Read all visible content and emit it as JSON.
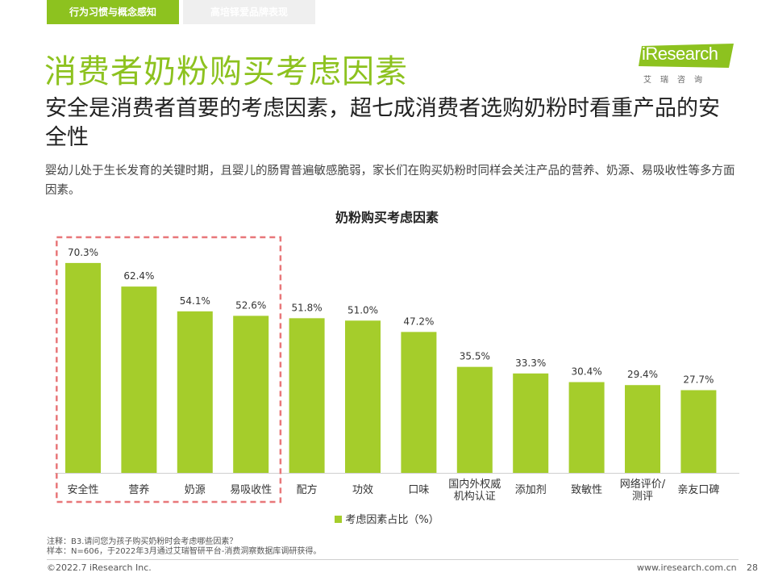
{
  "header": {
    "tabs": [
      {
        "label": "行为习惯与概念感知",
        "active": true
      },
      {
        "label": "高培铎爱品牌表现",
        "active": false
      }
    ]
  },
  "logo": {
    "text": "iResearch",
    "subtitle": "艾瑞咨询"
  },
  "title": "消费者奶粉购买考虑因素",
  "subtitle": "安全是消费者首要的考虑因素，超七成消费者选购奶粉时看重产品的安全性",
  "description": "婴幼儿处于生长发育的关键时期，且婴儿的肠胃普遍敏感脆弱，家长们在购买奶粉时同样会关注产品的营养、奶源、易吸收性等多方面因素。",
  "chart_data": {
    "type": "bar",
    "title": "奶粉购买考虑因素",
    "categories": [
      "安全性",
      "营养",
      "奶源",
      "易吸收性",
      "配方",
      "功效",
      "口味",
      "国内外权威机构认证",
      "添加剂",
      "致敏性",
      "网络评价/测评",
      "亲友口碑"
    ],
    "category_lines": [
      [
        "安全性"
      ],
      [
        "营养"
      ],
      [
        "奶源"
      ],
      [
        "易吸收性"
      ],
      [
        "配方"
      ],
      [
        "功效"
      ],
      [
        "口味"
      ],
      [
        "国内外权威",
        "机构认证"
      ],
      [
        "添加剂"
      ],
      [
        "致敏性"
      ],
      [
        "网络评价/",
        "测评"
      ],
      [
        "亲友口碑"
      ]
    ],
    "series": [
      {
        "name": "考虑因素占比（%）",
        "values": [
          70.3,
          62.4,
          54.1,
          52.6,
          51.8,
          51.0,
          47.2,
          35.5,
          33.3,
          30.4,
          29.4,
          27.7
        ]
      }
    ],
    "value_labels": [
      "70.3%",
      "62.4%",
      "54.1%",
      "52.6%",
      "51.8%",
      "51.0%",
      "47.2%",
      "35.5%",
      "33.3%",
      "30.4%",
      "29.4%",
      "27.7%"
    ],
    "ylim": [
      0,
      100
    ],
    "grid": false,
    "legend_position": "bottom",
    "highlight_first_n": 4,
    "bar_color": "#a5cd2b",
    "highlight_color": "#e87779"
  },
  "legend": {
    "label": "考虑因素占比（%）"
  },
  "footer": {
    "note_line1": "注释：B3.请问您为孩子购买奶粉时会考虑哪些因素？",
    "note_line2": "样本：N=606，于2022年3月通过艾瑞智研平台-消费洞察数据库调研获得。",
    "copyright": "©2022.7 iResearch Inc.",
    "website": "www.iresearch.com.cn",
    "page_number": "28"
  },
  "colors": {
    "accent": "#8dc21f",
    "bar": "#a5cd2b",
    "highlight_box": "#e87779"
  }
}
